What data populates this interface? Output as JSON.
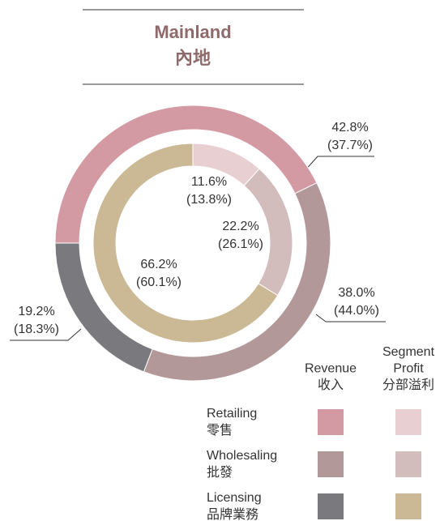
{
  "chart_data": {
    "type": "donut",
    "title": "Mainland",
    "title_zh": "內地",
    "categories": [
      "Retailing",
      "Wholesaling",
      "Licensing"
    ],
    "categories_zh": [
      "零售",
      "批發",
      "品牌業務"
    ],
    "series": [
      {
        "name_lines": [
          "Revenue",
          "收入"
        ],
        "colors": [
          "#d49aa3",
          "#b3989a",
          "#7a7a7e"
        ],
        "values": [
          42.8,
          38.0,
          19.2
        ],
        "value_labels": [
          "42.8%",
          "38.0%",
          "19.2%"
        ],
        "prior_value_labels": [
          "(37.7%)",
          "(44.0%)",
          "(18.3%)"
        ]
      },
      {
        "name_lines": [
          "Segment",
          "Profit",
          "分部溢利"
        ],
        "colors": [
          "#e8cfd1",
          "#d2bcbc",
          "#cbb894"
        ],
        "values": [
          11.6,
          22.2,
          66.2
        ],
        "value_labels": [
          "11.6%",
          "22.2%",
          "66.2%"
        ],
        "prior_value_labels": [
          "(13.8%)",
          "(26.1%)",
          "(60.1%)"
        ]
      }
    ]
  }
}
